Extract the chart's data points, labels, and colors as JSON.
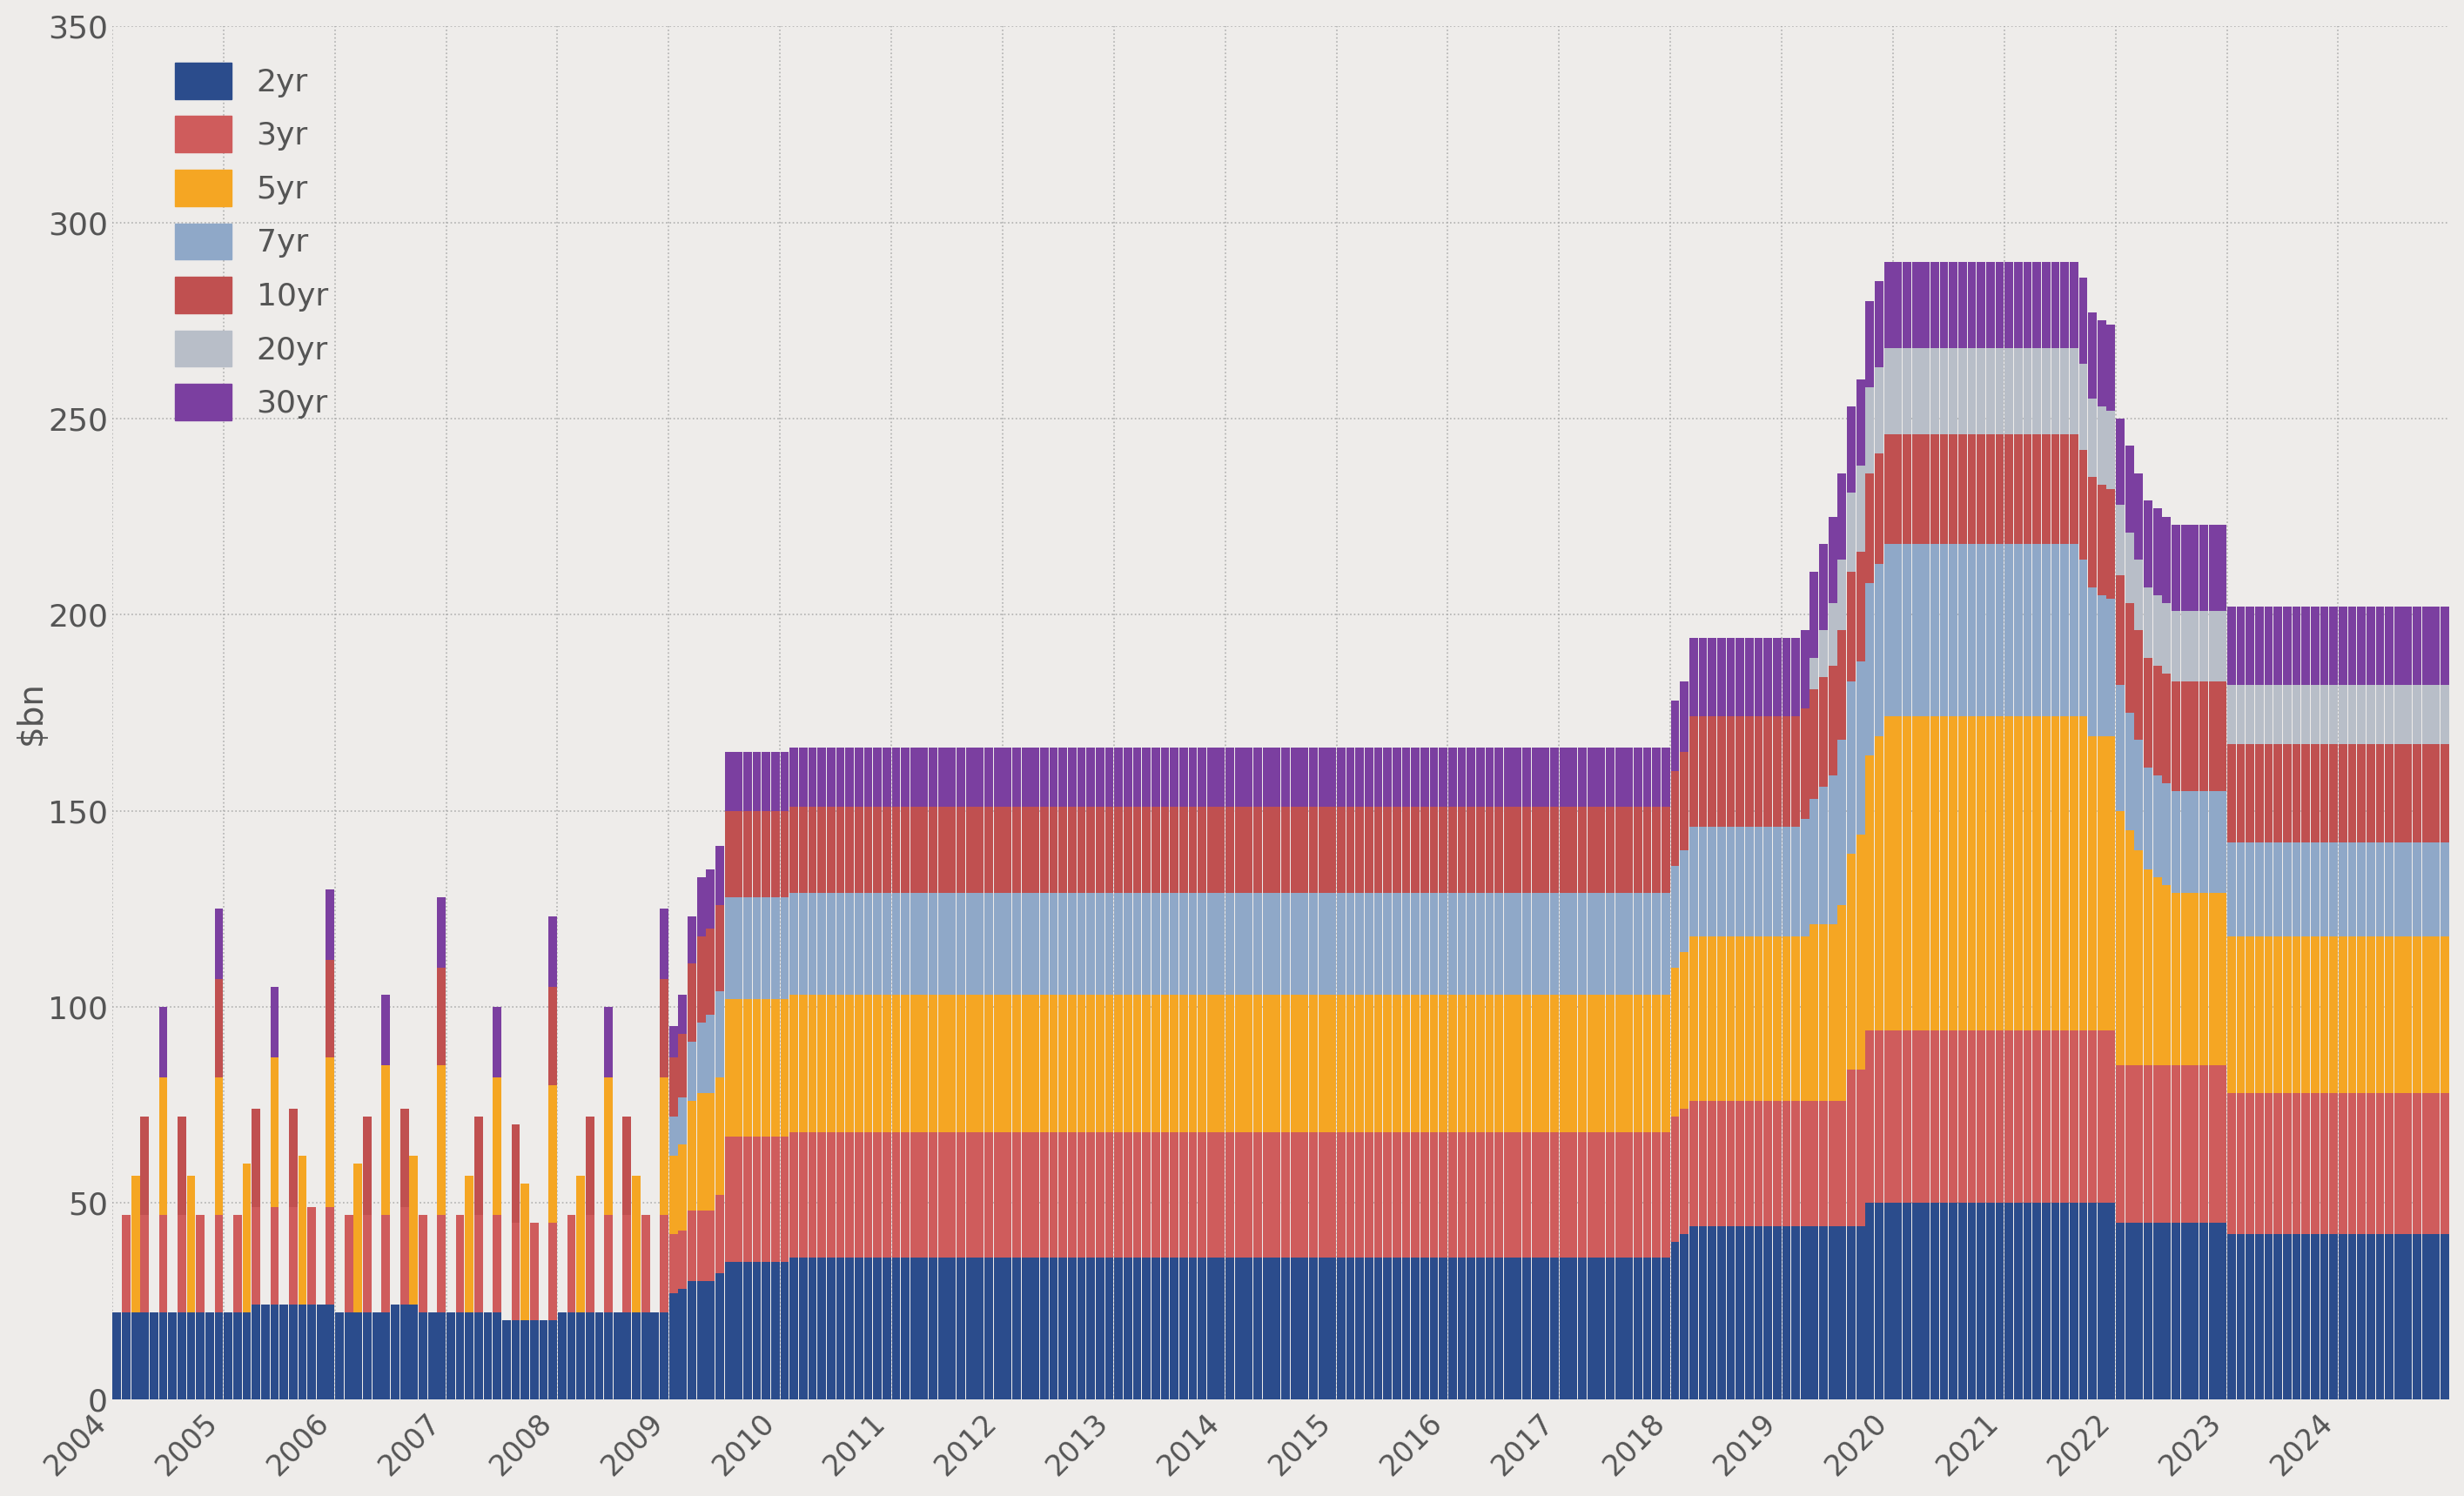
{
  "title": "",
  "ylabel": "$bn",
  "ylim": [
    0,
    350
  ],
  "yticks": [
    0,
    50,
    100,
    150,
    200,
    250,
    300,
    350
  ],
  "background_color": "#EEECEA",
  "grid_color": "#AAAAAA",
  "series_names": [
    "2yr",
    "3yr",
    "5yr",
    "7yr",
    "10yr",
    "20yr",
    "30yr"
  ],
  "series_colors": [
    "#2B4C8C",
    "#CF5C5C",
    "#F5A623",
    "#8FA8C8",
    "#C05050",
    "#B8BEC8",
    "#7B3FA0"
  ],
  "start_year": 2004,
  "end_year": 2024,
  "data": {
    "2yr": [
      22,
      22,
      22,
      22,
      22,
      22,
      22,
      22,
      22,
      22,
      22,
      22,
      22,
      22,
      22,
      24,
      24,
      24,
      24,
      24,
      24,
      24,
      24,
      24,
      22,
      22,
      22,
      22,
      22,
      22,
      24,
      24,
      24,
      22,
      22,
      22,
      22,
      22,
      22,
      22,
      22,
      22,
      20,
      20,
      20,
      20,
      20,
      20,
      22,
      22,
      22,
      22,
      22,
      22,
      22,
      22,
      22,
      22,
      22,
      22,
      27,
      28,
      30,
      30,
      30,
      32,
      35,
      35,
      35,
      35,
      35,
      35,
      35,
      36,
      36,
      36,
      36,
      36,
      36,
      36,
      36,
      36,
      36,
      36,
      36,
      36,
      36,
      36,
      36,
      36,
      36,
      36,
      36,
      36,
      36,
      36,
      36,
      36,
      36,
      36,
      36,
      36,
      36,
      36,
      36,
      36,
      36,
      36,
      36,
      36,
      36,
      36,
      36,
      36,
      36,
      36,
      36,
      36,
      36,
      36,
      36,
      36,
      36,
      36,
      36,
      36,
      36,
      36,
      36,
      36,
      36,
      36,
      36,
      36,
      36,
      36,
      36,
      36,
      36,
      36,
      36,
      36,
      36,
      36,
      36,
      36,
      36,
      36,
      36,
      36,
      36,
      36,
      36,
      36,
      36,
      36,
      36,
      36,
      36,
      36,
      36,
      36,
      36,
      36,
      36,
      36,
      36,
      36,
      40,
      42,
      44,
      44,
      44,
      44,
      44,
      44,
      44,
      44,
      44,
      44,
      44,
      44,
      44,
      44,
      44,
      44,
      44,
      44,
      44,
      50,
      50,
      50,
      50,
      50,
      50,
      50,
      50,
      50,
      50,
      50,
      50,
      50,
      50,
      50,
      50,
      50,
      50,
      50,
      50,
      50,
      50,
      50,
      50,
      50,
      50,
      50,
      45,
      45,
      45,
      45,
      45,
      45,
      45,
      45,
      45,
      45,
      45,
      45,
      42,
      42,
      42,
      42,
      42,
      42,
      42,
      42,
      42,
      42,
      42,
      42,
      42,
      42,
      42,
      42,
      42
    ],
    "3yr": [
      0,
      25,
      0,
      25,
      0,
      25,
      0,
      25,
      0,
      25,
      0,
      25,
      0,
      25,
      0,
      25,
      0,
      25,
      0,
      25,
      0,
      25,
      0,
      25,
      0,
      25,
      0,
      25,
      0,
      25,
      0,
      25,
      0,
      25,
      0,
      25,
      0,
      25,
      0,
      25,
      0,
      25,
      0,
      25,
      0,
      25,
      0,
      25,
      0,
      25,
      0,
      25,
      0,
      25,
      0,
      25,
      0,
      25,
      0,
      25,
      15,
      15,
      18,
      18,
      18,
      20,
      32,
      32,
      32,
      32,
      32,
      32,
      32,
      32,
      32,
      32,
      32,
      32,
      32,
      32,
      32,
      32,
      32,
      32,
      32,
      32,
      32,
      32,
      32,
      32,
      32,
      32,
      32,
      32,
      32,
      32,
      32,
      32,
      32,
      32,
      32,
      32,
      32,
      32,
      32,
      32,
      32,
      32,
      32,
      32,
      32,
      32,
      32,
      32,
      32,
      32,
      32,
      32,
      32,
      32,
      32,
      32,
      32,
      32,
      32,
      32,
      32,
      32,
      32,
      32,
      32,
      32,
      32,
      32,
      32,
      32,
      32,
      32,
      32,
      32,
      32,
      32,
      32,
      32,
      32,
      32,
      32,
      32,
      32,
      32,
      32,
      32,
      32,
      32,
      32,
      32,
      32,
      32,
      32,
      32,
      32,
      32,
      32,
      32,
      32,
      32,
      32,
      32,
      32,
      32,
      32,
      32,
      32,
      32,
      32,
      32,
      32,
      32,
      32,
      32,
      32,
      32,
      32,
      32,
      32,
      32,
      32,
      40,
      40,
      44,
      44,
      44,
      44,
      44,
      44,
      44,
      44,
      44,
      44,
      44,
      44,
      44,
      44,
      44,
      44,
      44,
      44,
      44,
      44,
      44,
      44,
      44,
      44,
      44,
      44,
      44,
      40,
      40,
      40,
      40,
      40,
      40,
      40,
      40,
      40,
      40,
      40,
      40,
      36,
      36,
      36,
      36,
      36,
      36,
      36,
      36,
      36,
      36,
      36,
      36,
      36,
      36,
      36,
      36,
      36
    ],
    "5yr": [
      0,
      0,
      35,
      0,
      0,
      35,
      0,
      0,
      35,
      0,
      0,
      35,
      0,
      0,
      38,
      0,
      0,
      38,
      0,
      0,
      38,
      0,
      0,
      38,
      0,
      0,
      38,
      0,
      0,
      38,
      0,
      0,
      38,
      0,
      0,
      38,
      0,
      0,
      35,
      0,
      0,
      35,
      0,
      0,
      35,
      0,
      0,
      35,
      0,
      0,
      35,
      0,
      0,
      35,
      0,
      0,
      35,
      0,
      0,
      35,
      20,
      22,
      28,
      30,
      30,
      30,
      35,
      35,
      35,
      35,
      35,
      35,
      35,
      35,
      35,
      35,
      35,
      35,
      35,
      35,
      35,
      35,
      35,
      35,
      35,
      35,
      35,
      35,
      35,
      35,
      35,
      35,
      35,
      35,
      35,
      35,
      35,
      35,
      35,
      35,
      35,
      35,
      35,
      35,
      35,
      35,
      35,
      35,
      35,
      35,
      35,
      35,
      35,
      35,
      35,
      35,
      35,
      35,
      35,
      35,
      35,
      35,
      35,
      35,
      35,
      35,
      35,
      35,
      35,
      35,
      35,
      35,
      35,
      35,
      35,
      35,
      35,
      35,
      35,
      35,
      35,
      35,
      35,
      35,
      35,
      35,
      35,
      35,
      35,
      35,
      35,
      35,
      35,
      35,
      35,
      35,
      35,
      35,
      35,
      35,
      35,
      35,
      35,
      35,
      35,
      35,
      35,
      35,
      38,
      40,
      42,
      42,
      42,
      42,
      42,
      42,
      42,
      42,
      42,
      42,
      42,
      42,
      42,
      45,
      45,
      45,
      50,
      55,
      60,
      70,
      75,
      80,
      80,
      80,
      80,
      80,
      80,
      80,
      80,
      80,
      80,
      80,
      80,
      80,
      80,
      80,
      80,
      80,
      80,
      80,
      80,
      80,
      80,
      75,
      75,
      75,
      65,
      60,
      55,
      50,
      48,
      46,
      44,
      44,
      44,
      44,
      44,
      44,
      40,
      40,
      40,
      40,
      40,
      40,
      40,
      40,
      40,
      40,
      40,
      40,
      40,
      40,
      40,
      40,
      40
    ],
    "7yr": [
      0,
      0,
      0,
      0,
      0,
      0,
      0,
      0,
      0,
      0,
      0,
      0,
      0,
      0,
      0,
      0,
      0,
      0,
      0,
      0,
      0,
      0,
      0,
      0,
      0,
      0,
      0,
      0,
      0,
      0,
      0,
      0,
      0,
      0,
      0,
      0,
      0,
      0,
      0,
      0,
      0,
      0,
      0,
      0,
      0,
      0,
      0,
      0,
      0,
      0,
      0,
      0,
      0,
      0,
      0,
      0,
      0,
      0,
      0,
      0,
      10,
      12,
      15,
      18,
      20,
      22,
      26,
      26,
      26,
      26,
      26,
      26,
      26,
      26,
      26,
      26,
      26,
      26,
      26,
      26,
      26,
      26,
      26,
      26,
      26,
      26,
      26,
      26,
      26,
      26,
      26,
      26,
      26,
      26,
      26,
      26,
      26,
      26,
      26,
      26,
      26,
      26,
      26,
      26,
      26,
      26,
      26,
      26,
      26,
      26,
      26,
      26,
      26,
      26,
      26,
      26,
      26,
      26,
      26,
      26,
      26,
      26,
      26,
      26,
      26,
      26,
      26,
      26,
      26,
      26,
      26,
      26,
      26,
      26,
      26,
      26,
      26,
      26,
      26,
      26,
      26,
      26,
      26,
      26,
      26,
      26,
      26,
      26,
      26,
      26,
      26,
      26,
      26,
      26,
      26,
      26,
      26,
      26,
      26,
      26,
      26,
      26,
      26,
      26,
      26,
      26,
      26,
      26,
      26,
      26,
      28,
      28,
      28,
      28,
      28,
      28,
      28,
      28,
      28,
      28,
      28,
      28,
      30,
      32,
      35,
      38,
      42,
      44,
      44,
      44,
      44,
      44,
      44,
      44,
      44,
      44,
      44,
      44,
      44,
      44,
      44,
      44,
      44,
      44,
      44,
      44,
      44,
      44,
      44,
      44,
      44,
      44,
      40,
      38,
      36,
      35,
      32,
      30,
      28,
      26,
      26,
      26,
      26,
      26,
      26,
      26,
      26,
      26,
      24,
      24,
      24,
      24,
      24,
      24,
      24,
      24,
      24,
      24,
      24,
      24,
      24,
      24,
      24,
      24,
      24
    ],
    "10yr": [
      0,
      0,
      0,
      25,
      0,
      0,
      0,
      25,
      0,
      0,
      0,
      25,
      0,
      0,
      0,
      25,
      0,
      0,
      0,
      25,
      0,
      0,
      0,
      25,
      0,
      0,
      0,
      25,
      0,
      0,
      0,
      25,
      0,
      0,
      0,
      25,
      0,
      0,
      0,
      25,
      0,
      0,
      0,
      25,
      0,
      0,
      0,
      25,
      0,
      0,
      0,
      25,
      0,
      0,
      0,
      25,
      0,
      0,
      0,
      25,
      15,
      16,
      20,
      22,
      22,
      22,
      22,
      22,
      22,
      22,
      22,
      22,
      22,
      22,
      22,
      22,
      22,
      22,
      22,
      22,
      22,
      22,
      22,
      22,
      22,
      22,
      22,
      22,
      22,
      22,
      22,
      22,
      22,
      22,
      22,
      22,
      22,
      22,
      22,
      22,
      22,
      22,
      22,
      22,
      22,
      22,
      22,
      22,
      22,
      22,
      22,
      22,
      22,
      22,
      22,
      22,
      22,
      22,
      22,
      22,
      22,
      22,
      22,
      22,
      22,
      22,
      22,
      22,
      22,
      22,
      22,
      22,
      22,
      22,
      22,
      22,
      22,
      22,
      22,
      22,
      22,
      22,
      22,
      22,
      22,
      22,
      22,
      22,
      22,
      22,
      22,
      22,
      22,
      22,
      22,
      22,
      22,
      22,
      22,
      22,
      22,
      22,
      22,
      22,
      22,
      22,
      22,
      22,
      24,
      25,
      28,
      28,
      28,
      28,
      28,
      28,
      28,
      28,
      28,
      28,
      28,
      28,
      28,
      28,
      28,
      28,
      28,
      28,
      28,
      28,
      28,
      28,
      28,
      28,
      28,
      28,
      28,
      28,
      28,
      28,
      28,
      28,
      28,
      28,
      28,
      28,
      28,
      28,
      28,
      28,
      28,
      28,
      28,
      28,
      28,
      28,
      28,
      28,
      28,
      28,
      28,
      28,
      28,
      28,
      28,
      28,
      28,
      28,
      25,
      25,
      25,
      25,
      25,
      25,
      25,
      25,
      25,
      25,
      25,
      25,
      25,
      25,
      25,
      25,
      25
    ],
    "20yr": [
      0,
      0,
      0,
      0,
      0,
      0,
      0,
      0,
      0,
      0,
      0,
      0,
      0,
      0,
      0,
      0,
      0,
      0,
      0,
      0,
      0,
      0,
      0,
      0,
      0,
      0,
      0,
      0,
      0,
      0,
      0,
      0,
      0,
      0,
      0,
      0,
      0,
      0,
      0,
      0,
      0,
      0,
      0,
      0,
      0,
      0,
      0,
      0,
      0,
      0,
      0,
      0,
      0,
      0,
      0,
      0,
      0,
      0,
      0,
      0,
      0,
      0,
      0,
      0,
      0,
      0,
      0,
      0,
      0,
      0,
      0,
      0,
      0,
      0,
      0,
      0,
      0,
      0,
      0,
      0,
      0,
      0,
      0,
      0,
      0,
      0,
      0,
      0,
      0,
      0,
      0,
      0,
      0,
      0,
      0,
      0,
      0,
      0,
      0,
      0,
      0,
      0,
      0,
      0,
      0,
      0,
      0,
      0,
      0,
      0,
      0,
      0,
      0,
      0,
      0,
      0,
      0,
      0,
      0,
      0,
      0,
      0,
      0,
      0,
      0,
      0,
      0,
      0,
      0,
      0,
      0,
      0,
      0,
      0,
      0,
      0,
      0,
      0,
      0,
      0,
      0,
      0,
      0,
      0,
      0,
      0,
      0,
      0,
      0,
      0,
      0,
      0,
      0,
      0,
      0,
      0,
      0,
      0,
      0,
      0,
      0,
      0,
      0,
      0,
      0,
      0,
      0,
      0,
      0,
      0,
      0,
      0,
      0,
      0,
      0,
      0,
      0,
      0,
      0,
      0,
      0,
      0,
      0,
      8,
      12,
      16,
      18,
      20,
      22,
      22,
      22,
      22,
      22,
      22,
      22,
      22,
      22,
      22,
      22,
      22,
      22,
      22,
      22,
      22,
      22,
      22,
      22,
      22,
      22,
      22,
      22,
      22,
      22,
      20,
      20,
      20,
      18,
      18,
      18,
      18,
      18,
      18,
      18,
      18,
      18,
      18,
      18,
      18,
      15,
      15,
      15,
      15,
      15,
      15,
      15,
      15,
      15,
      15,
      15,
      15,
      15,
      15,
      15,
      15,
      15
    ],
    "30yr": [
      0,
      0,
      0,
      0,
      0,
      18,
      0,
      0,
      0,
      0,
      0,
      18,
      0,
      0,
      0,
      0,
      0,
      18,
      0,
      0,
      0,
      0,
      0,
      18,
      0,
      0,
      0,
      0,
      0,
      18,
      0,
      0,
      0,
      0,
      0,
      18,
      0,
      0,
      0,
      0,
      0,
      18,
      0,
      0,
      0,
      0,
      0,
      18,
      0,
      0,
      0,
      0,
      0,
      18,
      0,
      0,
      0,
      0,
      0,
      18,
      8,
      10,
      12,
      15,
      15,
      15,
      15,
      15,
      15,
      15,
      15,
      15,
      15,
      15,
      15,
      15,
      15,
      15,
      15,
      15,
      15,
      15,
      15,
      15,
      15,
      15,
      15,
      15,
      15,
      15,
      15,
      15,
      15,
      15,
      15,
      15,
      15,
      15,
      15,
      15,
      15,
      15,
      15,
      15,
      15,
      15,
      15,
      15,
      15,
      15,
      15,
      15,
      15,
      15,
      15,
      15,
      15,
      15,
      15,
      15,
      15,
      15,
      15,
      15,
      15,
      15,
      15,
      15,
      15,
      15,
      15,
      15,
      15,
      15,
      15,
      15,
      15,
      15,
      15,
      15,
      15,
      15,
      15,
      15,
      15,
      15,
      15,
      15,
      15,
      15,
      15,
      15,
      15,
      15,
      15,
      15,
      15,
      15,
      15,
      15,
      15,
      15,
      15,
      15,
      15,
      15,
      15,
      15,
      18,
      18,
      20,
      20,
      20,
      20,
      20,
      20,
      20,
      20,
      20,
      20,
      20,
      20,
      20,
      22,
      22,
      22,
      22,
      22,
      22,
      22,
      22,
      22,
      22,
      22,
      22,
      22,
      22,
      22,
      22,
      22,
      22,
      22,
      22,
      22,
      22,
      22,
      22,
      22,
      22,
      22,
      22,
      22,
      22,
      22,
      22,
      22,
      22,
      22,
      22,
      22,
      22,
      22,
      22,
      22,
      22,
      22,
      22,
      22,
      20,
      20,
      20,
      20,
      20,
      20,
      20,
      20,
      20,
      20,
      20,
      20,
      20,
      20,
      20,
      20,
      20
    ]
  }
}
